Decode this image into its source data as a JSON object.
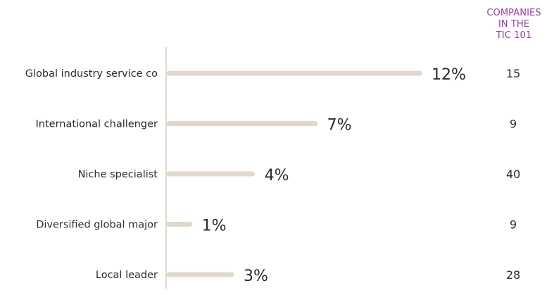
{
  "column_header": [
    "COMPANIES",
    "IN THE",
    "TIC 101"
  ],
  "chart_data": {
    "type": "bar",
    "orientation": "horizontal",
    "categories": [
      "Global industry service co",
      "International challenger",
      "Niche specialist",
      "Diversified global major",
      "Local leader"
    ],
    "values": [
      12,
      7,
      4,
      1,
      3
    ],
    "value_labels": [
      "12%",
      "7%",
      "4%",
      "1%",
      "3%"
    ],
    "companies": [
      15,
      9,
      40,
      9,
      28
    ],
    "title": "",
    "xlabel": "",
    "ylabel": "",
    "xlim": [
      0,
      12
    ],
    "grid": false,
    "legend": "none",
    "colors": {
      "bar": "#e0d8cc",
      "axis": "#e0d8cc",
      "value_text": "#2b2b2b",
      "header": "#9b3aa6"
    }
  }
}
